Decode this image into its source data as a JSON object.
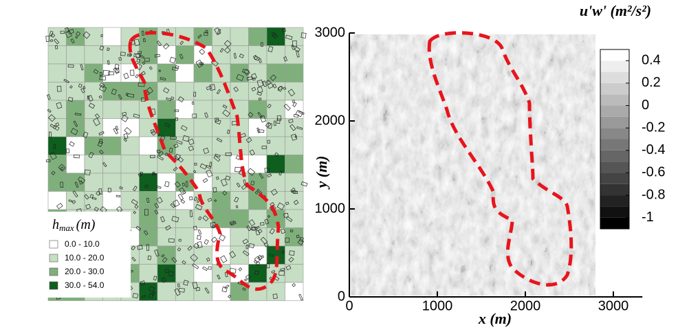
{
  "chart_data": [
    {
      "type": "map",
      "legend_title": "h",
      "legend_title_sub": "max",
      "legend_title_unit": "(m)",
      "legend": [
        {
          "label": "0.0 - 10.0",
          "color": "#ffffff"
        },
        {
          "label": "10.0 - 20.0",
          "color": "#c6dec3"
        },
        {
          "label": "20.0 - 30.0",
          "color": "#7fb07c"
        },
        {
          "label": "30.0 - 54.0",
          "color": "#0e5e1e"
        }
      ]
    },
    {
      "type": "contour",
      "xlabel": "x (m)",
      "ylabel": "y (m)",
      "xlim": [
        0,
        3330
      ],
      "ylim": [
        0,
        3000
      ],
      "xticks": [
        0,
        1000,
        2000,
        3000
      ],
      "yticks": [
        0,
        1000,
        2000,
        3000
      ],
      "colorbar": {
        "title": "u'w' (m²/s²)",
        "lim": [
          -1.1,
          0.5
        ],
        "ticks": [
          0.4,
          0.2,
          0,
          -0.2,
          -0.4,
          -0.6,
          -0.8,
          -1
        ]
      }
    }
  ]
}
